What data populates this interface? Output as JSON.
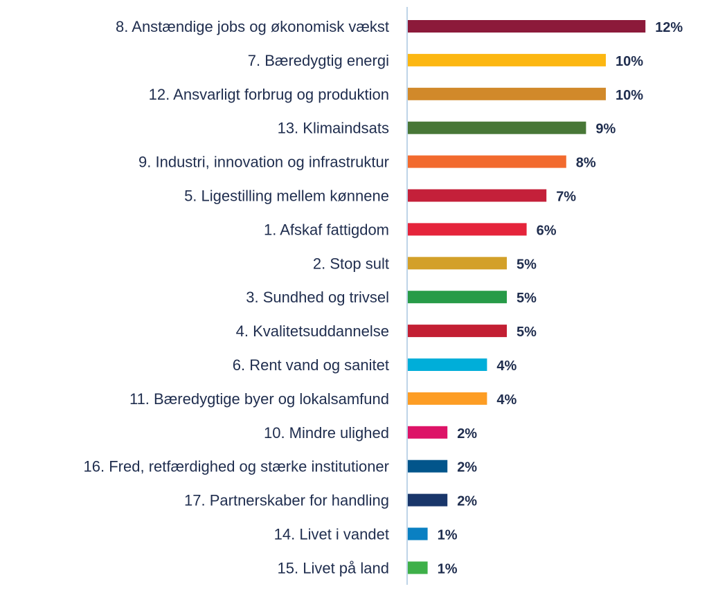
{
  "chart_data": {
    "type": "bar",
    "orientation": "horizontal",
    "title": "",
    "xlabel": "",
    "ylabel": "",
    "xlim": [
      0,
      12
    ],
    "grid": false,
    "legend": "none",
    "value_suffix": "%",
    "categories": [
      "8. Anstændige jobs og økonomisk vækst",
      "7. Bæredygtig energi",
      "12. Ansvarligt forbrug og produktion",
      "13. Klimaindsats",
      "9. Industri, innovation og infrastruktur",
      "5. Ligestilling mellem kønnene",
      "1. Afskaf fattigdom",
      "2. Stop sult",
      "3. Sundhed og trivsel",
      "4. Kvalitetsuddannelse",
      "6. Rent vand og sanitet",
      "11. Bæredygtige byer og lokalsamfund",
      "10. Mindre ulighed",
      "16. Fred, retfærdighed og stærke institutioner",
      "17. Partnerskaber for handling",
      "14. Livet i vandet",
      "15. Livet på land"
    ],
    "values": [
      12,
      10,
      10,
      9,
      8,
      7,
      6,
      5,
      5,
      5,
      4,
      4,
      2,
      2,
      2,
      1,
      1
    ],
    "colors": [
      "#8c1a3a",
      "#fcb712",
      "#d1892a",
      "#487737",
      "#f26a2e",
      "#c4203a",
      "#e5243b",
      "#d3a029",
      "#279b48",
      "#c31f33",
      "#00aed9",
      "#fd9d24",
      "#dd1367",
      "#02558b",
      "#19366a",
      "#0a80c2",
      "#3eb049"
    ],
    "axis_color": "#a9c6e0",
    "text_color": "#1f2d4e"
  }
}
